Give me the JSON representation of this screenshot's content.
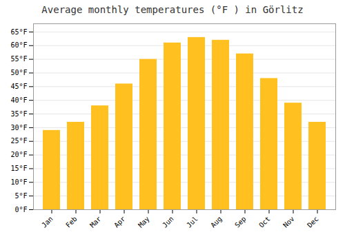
{
  "chart_data": {
    "type": "bar",
    "title": "Average monthly temperatures (°F ) in Görlitz",
    "categories": [
      "Jan",
      "Feb",
      "Mar",
      "Apr",
      "May",
      "Jun",
      "Jul",
      "Aug",
      "Sep",
      "Oct",
      "Nov",
      "Dec"
    ],
    "values": [
      29,
      32,
      38,
      46,
      55,
      61,
      63,
      62,
      57,
      48,
      39,
      32
    ],
    "color": "#FFC020",
    "ylim": [
      0,
      68
    ],
    "yticks": [
      {
        "value": 0,
        "label": "0°F"
      },
      {
        "value": 5,
        "label": "5°F"
      },
      {
        "value": 10,
        "label": "10°F"
      },
      {
        "value": 15,
        "label": "15°F"
      },
      {
        "value": 20,
        "label": "20°F"
      },
      {
        "value": 25,
        "label": "25°F"
      },
      {
        "value": 30,
        "label": "30°F"
      },
      {
        "value": 35,
        "label": "35°F"
      },
      {
        "value": 40,
        "label": "40°F"
      },
      {
        "value": 45,
        "label": "45°F"
      },
      {
        "value": 50,
        "label": "50°F"
      },
      {
        "value": 55,
        "label": "55°F"
      },
      {
        "value": 60,
        "label": "60°F"
      },
      {
        "value": 65,
        "label": "65°F"
      }
    ],
    "grid": true
  }
}
